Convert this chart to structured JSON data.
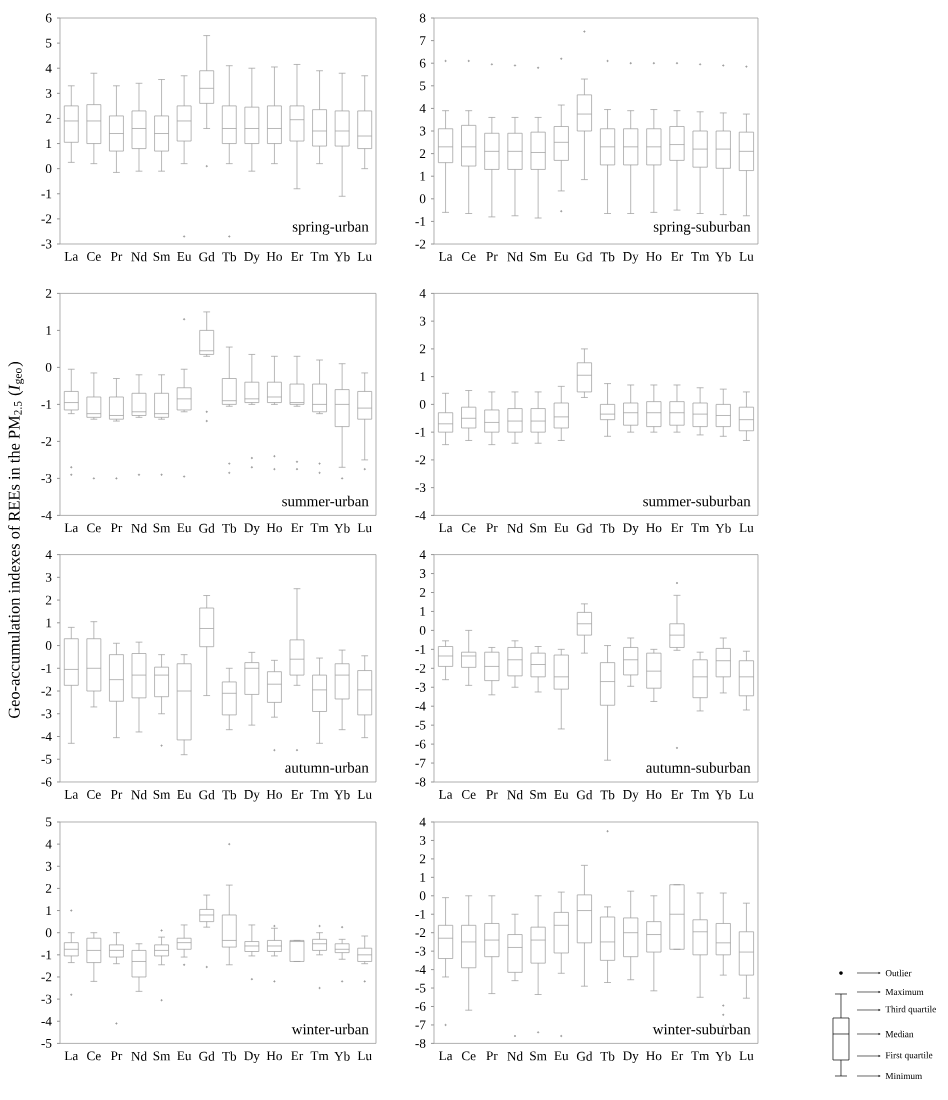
{
  "chart_data": [
    {
      "type": "box",
      "title": "spring-urban",
      "color": "#9a9a9a",
      "categories": [
        "La",
        "Ce",
        "Pr",
        "Nd",
        "Sm",
        "Eu",
        "Gd",
        "Tb",
        "Dy",
        "Ho",
        "Er",
        "Tm",
        "Yb",
        "Lu"
      ],
      "ylim": [
        -3,
        6
      ],
      "yticks": [
        -3,
        -2,
        -1,
        0,
        1,
        2,
        3,
        4,
        5,
        6
      ],
      "boxes": [
        {
          "low": 0.25,
          "q1": 1.05,
          "median": 1.9,
          "q3": 2.5,
          "high": 3.3
        },
        {
          "low": 0.2,
          "q1": 1.0,
          "median": 1.9,
          "q3": 2.55,
          "high": 3.8
        },
        {
          "low": -0.15,
          "q1": 0.7,
          "median": 1.4,
          "q3": 2.1,
          "high": 3.3
        },
        {
          "low": -0.1,
          "q1": 0.8,
          "median": 1.6,
          "q3": 2.3,
          "high": 3.4
        },
        {
          "low": -0.1,
          "q1": 0.7,
          "median": 1.4,
          "q3": 2.1,
          "high": 3.55
        },
        {
          "low": 0.2,
          "q1": 1.1,
          "median": 1.9,
          "q3": 2.5,
          "high": 3.7,
          "outliers": [
            -2.7
          ]
        },
        {
          "low": 1.6,
          "q1": 2.6,
          "median": 3.2,
          "q3": 3.9,
          "high": 5.3,
          "outliers": [
            0.1
          ]
        },
        {
          "low": 0.2,
          "q1": 1.0,
          "median": 1.6,
          "q3": 2.5,
          "high": 4.1,
          "outliers": [
            -2.7
          ]
        },
        {
          "low": -0.1,
          "q1": 1.0,
          "median": 1.6,
          "q3": 2.45,
          "high": 4.0
        },
        {
          "low": 0.2,
          "q1": 1.0,
          "median": 1.6,
          "q3": 2.5,
          "high": 4.05
        },
        {
          "low": -0.8,
          "q1": 1.1,
          "median": 1.95,
          "q3": 2.5,
          "high": 4.15
        },
        {
          "low": 0.2,
          "q1": 0.9,
          "median": 1.5,
          "q3": 2.35,
          "high": 3.9
        },
        {
          "low": -1.1,
          "q1": 0.9,
          "median": 1.5,
          "q3": 2.3,
          "high": 3.8
        },
        {
          "low": 0.0,
          "q1": 0.8,
          "median": 1.3,
          "q3": 2.3,
          "high": 3.7
        }
      ]
    },
    {
      "type": "box",
      "title": "spring-suburban",
      "color": "#9a9a9a",
      "categories": [
        "La",
        "Ce",
        "Pr",
        "Nd",
        "Sm",
        "Eu",
        "Gd",
        "Tb",
        "Dy",
        "Ho",
        "Er",
        "Tm",
        "Yb",
        "Lu"
      ],
      "ylim": [
        -2,
        8
      ],
      "yticks": [
        -2,
        -1,
        0,
        1,
        2,
        3,
        4,
        5,
        6,
        7,
        8
      ],
      "boxes": [
        {
          "low": -0.6,
          "q1": 1.6,
          "median": 2.3,
          "q3": 3.1,
          "high": 3.9,
          "outliers": [
            6.1
          ]
        },
        {
          "low": -0.65,
          "q1": 1.45,
          "median": 2.3,
          "q3": 3.25,
          "high": 3.9,
          "outliers": [
            6.1
          ]
        },
        {
          "low": -0.8,
          "q1": 1.3,
          "median": 2.1,
          "q3": 2.9,
          "high": 3.6,
          "outliers": [
            5.95
          ]
        },
        {
          "low": -0.75,
          "q1": 1.3,
          "median": 2.1,
          "q3": 2.9,
          "high": 3.6,
          "outliers": [
            5.9
          ]
        },
        {
          "low": -0.85,
          "q1": 1.3,
          "median": 2.05,
          "q3": 2.95,
          "high": 3.6,
          "outliers": [
            5.8
          ]
        },
        {
          "low": 0.35,
          "q1": 1.7,
          "median": 2.5,
          "q3": 3.2,
          "high": 4.15,
          "outliers": [
            6.2,
            -0.55
          ]
        },
        {
          "low": 0.85,
          "q1": 3.0,
          "median": 3.75,
          "q3": 4.6,
          "high": 5.3,
          "outliers": [
            7.4
          ]
        },
        {
          "low": -0.65,
          "q1": 1.5,
          "median": 2.3,
          "q3": 3.1,
          "high": 3.95,
          "outliers": [
            6.1
          ]
        },
        {
          "low": -0.65,
          "q1": 1.5,
          "median": 2.3,
          "q3": 3.1,
          "high": 3.9,
          "outliers": [
            6.0
          ]
        },
        {
          "low": -0.6,
          "q1": 1.5,
          "median": 2.3,
          "q3": 3.1,
          "high": 3.95,
          "outliers": [
            6.0
          ]
        },
        {
          "low": -0.5,
          "q1": 1.7,
          "median": 2.4,
          "q3": 3.2,
          "high": 3.9,
          "outliers": [
            6.0
          ]
        },
        {
          "low": -0.65,
          "q1": 1.4,
          "median": 2.2,
          "q3": 3.0,
          "high": 3.85,
          "outliers": [
            5.95
          ]
        },
        {
          "low": -0.7,
          "q1": 1.35,
          "median": 2.2,
          "q3": 3.0,
          "high": 3.8,
          "outliers": [
            5.9
          ]
        },
        {
          "low": -0.75,
          "q1": 1.25,
          "median": 2.1,
          "q3": 2.95,
          "high": 3.75,
          "outliers": [
            5.85
          ]
        }
      ]
    },
    {
      "type": "box",
      "title": "summer-urban",
      "color": "#9a9a9a",
      "categories": [
        "La",
        "Ce",
        "Pr",
        "Nd",
        "Sm",
        "Eu",
        "Gd",
        "Tb",
        "Dy",
        "Ho",
        "Er",
        "Tm",
        "Yb",
        "Lu"
      ],
      "ylim": [
        -4,
        2
      ],
      "yticks": [
        -4,
        -3,
        -2,
        -1,
        0,
        1,
        2
      ],
      "boxes": [
        {
          "low": -1.25,
          "q1": -1.15,
          "median": -0.95,
          "q3": -0.65,
          "high": -0.05,
          "outliers": [
            -2.7,
            -2.9
          ]
        },
        {
          "low": -1.4,
          "q1": -1.35,
          "median": -1.25,
          "q3": -0.8,
          "high": -0.15,
          "outliers": [
            -3.0
          ]
        },
        {
          "low": -1.45,
          "q1": -1.4,
          "median": -1.3,
          "q3": -0.8,
          "high": -0.3,
          "outliers": [
            -3.0
          ]
        },
        {
          "low": -1.35,
          "q1": -1.3,
          "median": -1.2,
          "q3": -0.7,
          "high": -0.2,
          "outliers": [
            -2.9
          ]
        },
        {
          "low": -1.4,
          "q1": -1.35,
          "median": -1.25,
          "q3": -0.7,
          "high": -0.2,
          "outliers": [
            -2.9
          ]
        },
        {
          "low": -1.2,
          "q1": -1.15,
          "median": -0.85,
          "q3": -0.55,
          "high": -0.05,
          "outliers": [
            1.3,
            -2.95
          ]
        },
        {
          "low": 0.3,
          "q1": 0.35,
          "median": 0.45,
          "q3": 1.0,
          "high": 1.5,
          "outliers": [
            -1.2,
            -1.45
          ]
        },
        {
          "low": -1.05,
          "q1": -1.0,
          "median": -0.9,
          "q3": -0.3,
          "high": 0.55,
          "outliers": [
            -2.6,
            -2.85
          ]
        },
        {
          "low": -1.0,
          "q1": -0.95,
          "median": -0.85,
          "q3": -0.4,
          "high": 0.35,
          "outliers": [
            -2.45,
            -2.7
          ]
        },
        {
          "low": -1.0,
          "q1": -0.95,
          "median": -0.8,
          "q3": -0.4,
          "high": 0.3,
          "outliers": [
            -2.4,
            -2.75
          ]
        },
        {
          "low": -1.05,
          "q1": -1.0,
          "median": -0.95,
          "q3": -0.45,
          "high": 0.3,
          "outliers": [
            -2.55,
            -2.75
          ]
        },
        {
          "low": -1.25,
          "q1": -1.2,
          "median": -1.0,
          "q3": -0.45,
          "high": 0.2,
          "outliers": [
            -2.6,
            -2.85
          ]
        },
        {
          "low": -2.7,
          "q1": -1.6,
          "median": -1.0,
          "q3": -0.6,
          "high": 0.1,
          "outliers": [
            -3.0
          ]
        },
        {
          "low": -2.5,
          "q1": -1.4,
          "median": -1.1,
          "q3": -0.65,
          "high": -0.15,
          "outliers": [
            -2.75
          ]
        }
      ]
    },
    {
      "type": "box",
      "title": "summer-suburban",
      "color": "#9a9a9a",
      "categories": [
        "La",
        "Ce",
        "Pr",
        "Nd",
        "Sm",
        "Eu",
        "Gd",
        "Tb",
        "Dy",
        "Ho",
        "Er",
        "Tm",
        "Yb",
        "Lu"
      ],
      "ylim": [
        -4,
        4
      ],
      "yticks": [
        -4,
        -3,
        -2,
        -1,
        0,
        1,
        2,
        3,
        4
      ],
      "boxes": [
        {
          "low": -1.45,
          "q1": -1.0,
          "median": -0.7,
          "q3": -0.3,
          "high": 0.4
        },
        {
          "low": -1.3,
          "q1": -0.85,
          "median": -0.5,
          "q3": -0.1,
          "high": 0.5
        },
        {
          "low": -1.45,
          "q1": -1.0,
          "median": -0.65,
          "q3": -0.2,
          "high": 0.45
        },
        {
          "low": -1.4,
          "q1": -1.0,
          "median": -0.6,
          "q3": -0.15,
          "high": 0.45
        },
        {
          "low": -1.4,
          "q1": -1.0,
          "median": -0.6,
          "q3": -0.15,
          "high": 0.45
        },
        {
          "low": -1.3,
          "q1": -0.85,
          "median": -0.45,
          "q3": 0.05,
          "high": 0.65
        },
        {
          "low": 0.25,
          "q1": 0.45,
          "median": 1.05,
          "q3": 1.5,
          "high": 2.0
        },
        {
          "low": -1.15,
          "q1": -0.55,
          "median": -0.35,
          "q3": 0.0,
          "high": 0.75
        },
        {
          "low": -1.0,
          "q1": -0.75,
          "median": -0.3,
          "q3": 0.05,
          "high": 0.7
        },
        {
          "low": -1.0,
          "q1": -0.8,
          "median": -0.3,
          "q3": 0.1,
          "high": 0.7
        },
        {
          "low": -1.0,
          "q1": -0.75,
          "median": -0.3,
          "q3": 0.1,
          "high": 0.7
        },
        {
          "low": -1.1,
          "q1": -0.8,
          "median": -0.35,
          "q3": 0.05,
          "high": 0.6
        },
        {
          "low": -1.15,
          "q1": -0.8,
          "median": -0.4,
          "q3": 0.0,
          "high": 0.55
        },
        {
          "low": -1.3,
          "q1": -0.95,
          "median": -0.55,
          "q3": -0.1,
          "high": 0.45
        }
      ]
    },
    {
      "type": "box",
      "title": "autumn-urban",
      "ylabel": "Geo-accumulation indexes of REEs in the PM$_{2.5}$ (*I*$_{geo}$)",
      "color": "#9a9a9a",
      "categories": [
        "La",
        "Ce",
        "Pr",
        "Nd",
        "Sm",
        "Eu",
        "Gd",
        "Tb",
        "Dy",
        "Ho",
        "Er",
        "Tm",
        "Yb",
        "Lu"
      ],
      "ylim": [
        -6,
        4
      ],
      "yticks": [
        -6,
        -5,
        -4,
        -3,
        -2,
        -1,
        0,
        1,
        2,
        3,
        4
      ],
      "boxes": [
        {
          "low": -4.3,
          "q1": -1.75,
          "median": -1.05,
          "q3": 0.3,
          "high": 0.8
        },
        {
          "low": -2.7,
          "q1": -2.0,
          "median": -1.0,
          "q3": 0.3,
          "high": 1.05
        },
        {
          "low": -4.05,
          "q1": -2.45,
          "median": -1.5,
          "q3": -0.4,
          "high": 0.1
        },
        {
          "low": -3.8,
          "q1": -2.3,
          "median": -1.3,
          "q3": -0.35,
          "high": 0.15
        },
        {
          "low": -3.0,
          "q1": -2.25,
          "median": -1.3,
          "q3": -0.95,
          "high": -0.4,
          "outliers": [
            -4.4
          ]
        },
        {
          "low": -4.8,
          "q1": -4.15,
          "median": -2.0,
          "q3": -0.8,
          "high": -0.4
        },
        {
          "low": -2.2,
          "q1": -0.05,
          "median": 0.75,
          "q3": 1.65,
          "high": 2.2
        },
        {
          "low": -3.7,
          "q1": -3.05,
          "median": -2.1,
          "q3": -1.6,
          "high": -1.0
        },
        {
          "low": -3.5,
          "q1": -2.15,
          "median": -1.0,
          "q3": -0.75,
          "high": -0.3
        },
        {
          "low": -3.15,
          "q1": -2.5,
          "median": -1.7,
          "q3": -1.15,
          "high": -0.65,
          "outliers": [
            -4.6
          ]
        },
        {
          "low": -1.75,
          "q1": -1.3,
          "median": -0.6,
          "q3": 0.25,
          "high": 2.5,
          "outliers": [
            -4.6
          ]
        },
        {
          "low": -4.3,
          "q1": -2.9,
          "median": -1.95,
          "q3": -1.3,
          "high": -0.55
        },
        {
          "low": -3.7,
          "q1": -2.35,
          "median": -1.3,
          "q3": -0.8,
          "high": -0.2
        },
        {
          "low": -4.05,
          "q1": -3.05,
          "median": -1.95,
          "q3": -1.1,
          "high": -0.45
        }
      ]
    },
    {
      "type": "box",
      "title": "autumn-suburban",
      "color": "#9a9a9a",
      "categories": [
        "La",
        "Ce",
        "Pr",
        "Nd",
        "Sm",
        "Eu",
        "Gd",
        "Tb",
        "Dy",
        "Ho",
        "Er",
        "Tm",
        "Yb",
        "Lu"
      ],
      "ylim": [
        -8,
        4
      ],
      "yticks": [
        -8,
        -7,
        -6,
        -5,
        -4,
        -3,
        -2,
        -1,
        0,
        1,
        2,
        3,
        4
      ],
      "boxes": [
        {
          "low": -2.6,
          "q1": -1.9,
          "median": -1.35,
          "q3": -0.85,
          "high": -0.55
        },
        {
          "low": -2.9,
          "q1": -1.95,
          "median": -1.35,
          "q3": -1.15,
          "high": 0.0
        },
        {
          "low": -3.4,
          "q1": -2.65,
          "median": -1.9,
          "q3": -1.15,
          "high": -0.9
        },
        {
          "low": -3.0,
          "q1": -2.4,
          "median": -1.55,
          "q3": -0.9,
          "high": -0.55
        },
        {
          "low": -3.25,
          "q1": -2.45,
          "median": -1.8,
          "q3": -1.2,
          "high": -0.85
        },
        {
          "low": -5.2,
          "q1": -3.1,
          "median": -2.45,
          "q3": -1.3,
          "high": -1.0
        },
        {
          "low": -1.2,
          "q1": -0.25,
          "median": 0.35,
          "q3": 0.95,
          "high": 1.4
        },
        {
          "low": -6.85,
          "q1": -3.95,
          "median": -2.7,
          "q3": -1.7,
          "high": -0.8
        },
        {
          "low": -2.95,
          "q1": -2.35,
          "median": -1.55,
          "q3": -0.9,
          "high": -0.4
        },
        {
          "low": -3.75,
          "q1": -3.05,
          "median": -2.15,
          "q3": -1.2,
          "high": -1.0
        },
        {
          "low": -1.05,
          "q1": -0.9,
          "median": -0.25,
          "q3": 0.35,
          "high": 1.85,
          "outliers": [
            2.5,
            -6.2
          ]
        },
        {
          "low": -4.25,
          "q1": -3.55,
          "median": -2.45,
          "q3": -1.55,
          "high": -1.15
        },
        {
          "low": -3.3,
          "q1": -2.45,
          "median": -1.6,
          "q3": -0.95,
          "high": -0.4
        },
        {
          "low": -4.2,
          "q1": -3.45,
          "median": -2.45,
          "q3": -1.6,
          "high": -1.1
        }
      ]
    },
    {
      "type": "box",
      "title": "winter-urban",
      "color": "#9a9a9a",
      "categories": [
        "La",
        "Ce",
        "Pr",
        "Nd",
        "Sm",
        "Eu",
        "Gd",
        "Tb",
        "Dy",
        "Ho",
        "Er",
        "Tm",
        "Yb",
        "Lu"
      ],
      "ylim": [
        -5,
        5
      ],
      "yticks": [
        -5,
        -4,
        -3,
        -2,
        -1,
        0,
        1,
        2,
        3,
        4,
        5
      ],
      "boxes": [
        {
          "low": -1.35,
          "q1": -1.05,
          "median": -0.75,
          "q3": -0.45,
          "high": 0.0,
          "outliers": [
            1.0,
            -2.8
          ]
        },
        {
          "low": -2.2,
          "q1": -1.35,
          "median": -0.8,
          "q3": -0.25,
          "high": 0.0
        },
        {
          "low": -1.4,
          "q1": -1.1,
          "median": -0.8,
          "q3": -0.55,
          "high": 0.0,
          "outliers": [
            -4.1
          ]
        },
        {
          "low": -2.65,
          "q1": -2.0,
          "median": -1.3,
          "q3": -0.8,
          "high": -0.5
        },
        {
          "low": -1.45,
          "q1": -1.05,
          "median": -0.8,
          "q3": -0.55,
          "high": -0.2,
          "outliers": [
            0.1,
            -3.05
          ]
        },
        {
          "low": -1.1,
          "q1": -0.75,
          "median": -0.45,
          "q3": -0.25,
          "high": 0.35,
          "outliers": [
            -1.45
          ]
        },
        {
          "low": 0.25,
          "q1": 0.5,
          "median": 0.8,
          "q3": 1.05,
          "high": 1.7,
          "outliers": [
            -1.55
          ]
        },
        {
          "low": -1.45,
          "q1": -0.65,
          "median": -0.35,
          "q3": 0.8,
          "high": 2.15,
          "outliers": [
            4.0
          ]
        },
        {
          "low": -1.05,
          "q1": -0.85,
          "median": -0.6,
          "q3": -0.4,
          "high": 0.35,
          "outliers": [
            -2.1
          ]
        },
        {
          "low": -1.05,
          "q1": -0.85,
          "median": -0.6,
          "q3": -0.35,
          "high": 0.2,
          "outliers": [
            0.3,
            -2.2
          ]
        },
        {
          "low": -1.3,
          "q1": -1.3,
          "median": -0.4,
          "q3": -0.35,
          "high": -0.35
        },
        {
          "low": -1.0,
          "q1": -0.8,
          "median": -0.5,
          "q3": -0.3,
          "high": 0.0,
          "outliers": [
            0.3,
            -2.5
          ]
        },
        {
          "low": -1.2,
          "q1": -0.9,
          "median": -0.75,
          "q3": -0.5,
          "high": -0.3,
          "outliers": [
            0.25,
            -2.2
          ]
        },
        {
          "low": -1.4,
          "q1": -1.3,
          "median": -1.0,
          "q3": -0.7,
          "high": -0.15,
          "outliers": [
            -2.2
          ]
        }
      ]
    },
    {
      "type": "box",
      "title": "winter-suburban",
      "color": "#9a9a9a",
      "categories": [
        "La",
        "Ce",
        "Pr",
        "Nd",
        "Sm",
        "Eu",
        "Gd",
        "Tb",
        "Dy",
        "Ho",
        "Er",
        "Tm",
        "Yb",
        "Lu"
      ],
      "ylim": [
        -8,
        4
      ],
      "yticks": [
        -8,
        -7,
        -6,
        -5,
        -4,
        -3,
        -2,
        -1,
        0,
        1,
        2,
        3,
        4
      ],
      "boxes": [
        {
          "low": -4.4,
          "q1": -3.4,
          "median": -2.3,
          "q3": -1.6,
          "high": -0.1,
          "outliers": [
            -7.0
          ]
        },
        {
          "low": -6.2,
          "q1": -3.9,
          "median": -2.5,
          "q3": -1.6,
          "high": 0.0
        },
        {
          "low": -5.3,
          "q1": -3.3,
          "median": -2.4,
          "q3": -1.5,
          "high": 0.0
        },
        {
          "low": -4.6,
          "q1": -4.15,
          "median": -2.8,
          "q3": -2.1,
          "high": -1.0,
          "outliers": [
            -7.6
          ]
        },
        {
          "low": -5.35,
          "q1": -3.65,
          "median": -2.4,
          "q3": -1.7,
          "high": 0.0,
          "outliers": [
            -7.4
          ]
        },
        {
          "low": -4.2,
          "q1": -3.1,
          "median": -1.6,
          "q3": -0.9,
          "high": 0.2,
          "outliers": [
            -7.6
          ]
        },
        {
          "low": -4.9,
          "q1": -2.55,
          "median": -0.8,
          "q3": 0.05,
          "high": 1.65
        },
        {
          "low": -4.7,
          "q1": -3.5,
          "median": -2.5,
          "q3": -1.15,
          "high": -0.6,
          "outliers": [
            3.5
          ]
        },
        {
          "low": -4.55,
          "q1": -3.3,
          "median": -2.0,
          "q3": -1.2,
          "high": 0.25
        },
        {
          "low": -5.15,
          "q1": -3.05,
          "median": -2.1,
          "q3": -1.4,
          "high": 0.0
        },
        {
          "low": -2.9,
          "q1": -2.9,
          "median": -1.0,
          "q3": 0.6,
          "high": 0.6
        },
        {
          "low": -5.5,
          "q1": -3.2,
          "median": -1.95,
          "q3": -1.3,
          "high": 0.15
        },
        {
          "low": -4.3,
          "q1": -3.2,
          "median": -2.55,
          "q3": -1.5,
          "high": 0.15,
          "outliers": [
            -5.95,
            -6.45,
            -7.05
          ]
        },
        {
          "low": -5.55,
          "q1": -4.3,
          "median": -3.05,
          "q3": -1.95,
          "high": -0.4
        }
      ]
    },
    {
      "type": "other",
      "annotations": [
        "Outlier",
        "Maximum",
        "Third quartile",
        "Median",
        "First quartile",
        "Minimum"
      ]
    }
  ]
}
